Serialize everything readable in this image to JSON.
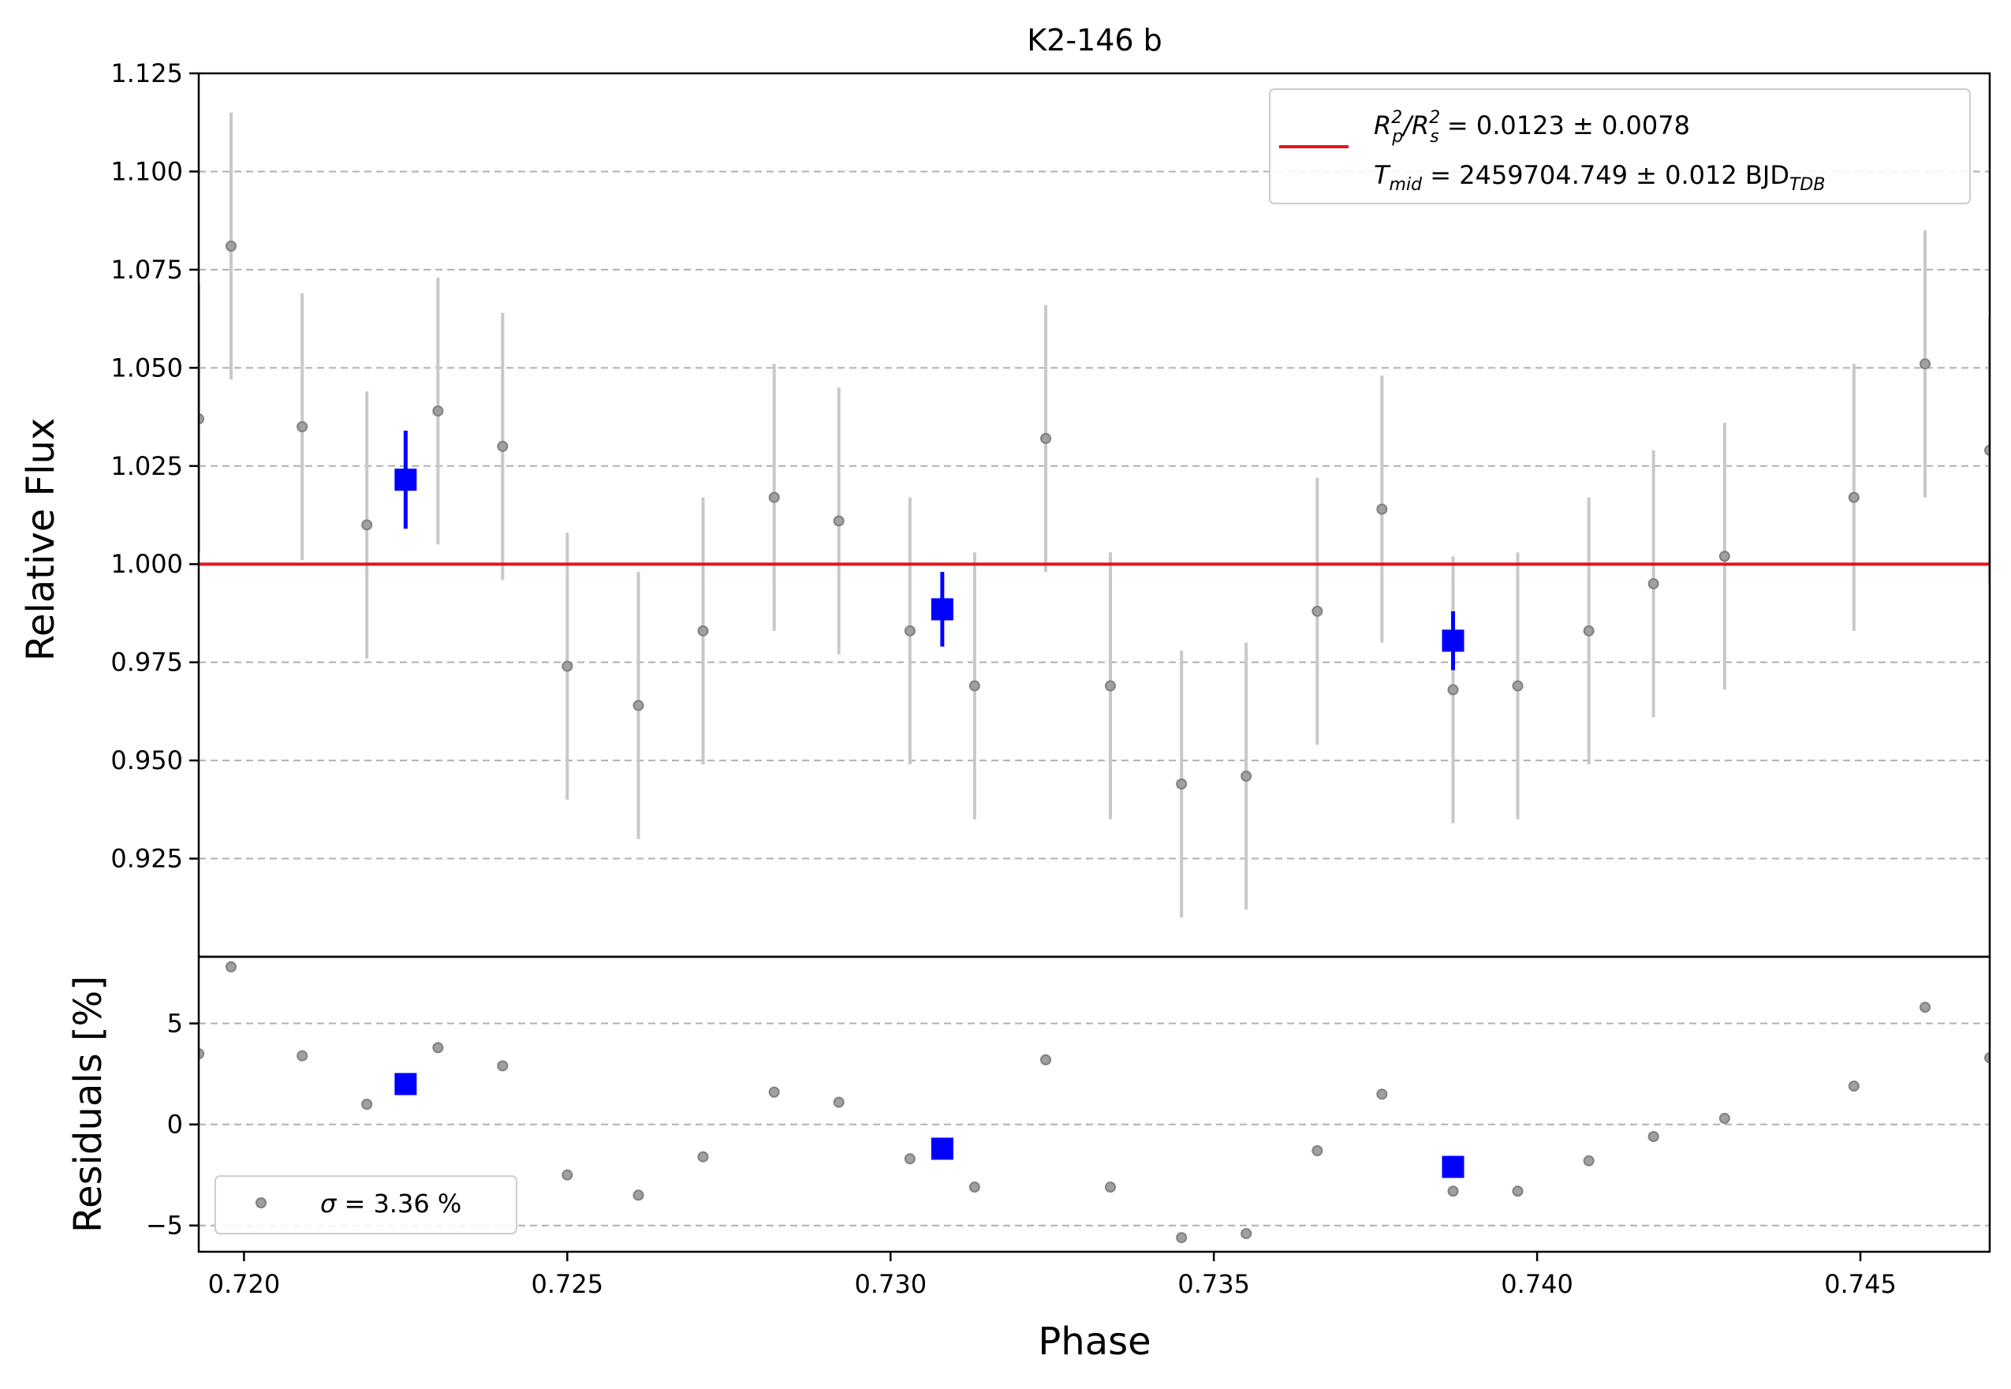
{
  "chart_data": {
    "type": "scatter",
    "title": "K2-146 b",
    "xlabel": "Phase",
    "ylabel_top": "Relative Flux",
    "ylabel_bottom": "Residuals [%]",
    "xlim": [
      0.7193,
      0.747
    ],
    "ylim_top": [
      0.9,
      1.125
    ],
    "ylim_bottom": [
      -6.3,
      8.3
    ],
    "x_ticks": [
      "0.720",
      "0.725",
      "0.730",
      "0.735",
      "0.740",
      "0.745"
    ],
    "x_tick_values": [
      0.72,
      0.725,
      0.73,
      0.735,
      0.74,
      0.745
    ],
    "y_ticks_top": [
      "0.925",
      "0.950",
      "0.975",
      "1.000",
      "1.025",
      "1.050",
      "1.075",
      "1.100",
      "1.125"
    ],
    "y_tick_values_top": [
      0.925,
      0.95,
      0.975,
      1.0,
      1.025,
      1.05,
      1.075,
      1.1,
      1.125
    ],
    "y_ticks_bottom": [
      "−5",
      "0",
      "5"
    ],
    "y_tick_values_bottom": [
      -5,
      0,
      5
    ],
    "grid": "horizontal dashed",
    "colors": {
      "data": "#808080",
      "errorbar": "#c8c8c8",
      "binned": "#0000ff",
      "model": "#e8141c",
      "grid": "#b0b0b0"
    },
    "model_line_value": 1.0,
    "legend_top": {
      "placement": "top-right",
      "line1_prefix": "R",
      "line1_sub_p": "p",
      "line1_sup": "2",
      "line1_mid": "/R",
      "line1_sub_s": "s",
      "line1_value": " = 0.0123 ± 0.0078",
      "line2_T": "T",
      "line2_sub": "mid",
      "line2_value": " = 2459704.749 ± 0.012 BJD",
      "line2_sub2": "TDB"
    },
    "legend_bottom": {
      "placement": "lower-left",
      "sigma": "σ",
      "value": " = 3.36 %"
    },
    "series_data": [
      {
        "x": 0.7193,
        "y": 1.037,
        "err": 0.034,
        "res": 3.5
      },
      {
        "x": 0.7198,
        "y": 1.081,
        "err": 0.034,
        "res": 7.8
      },
      {
        "x": 0.7209,
        "y": 1.035,
        "err": 0.034,
        "res": 3.4
      },
      {
        "x": 0.7219,
        "y": 1.01,
        "err": 0.034,
        "res": 1.0
      },
      {
        "x": 0.723,
        "y": 1.039,
        "err": 0.034,
        "res": 3.8
      },
      {
        "x": 0.724,
        "y": 1.03,
        "err": 0.034,
        "res": 2.9
      },
      {
        "x": 0.725,
        "y": 0.974,
        "err": 0.034,
        "res": -2.5
      },
      {
        "x": 0.7261,
        "y": 0.964,
        "err": 0.034,
        "res": -3.5
      },
      {
        "x": 0.7271,
        "y": 0.983,
        "err": 0.034,
        "res": -1.6
      },
      {
        "x": 0.7282,
        "y": 1.017,
        "err": 0.034,
        "res": 1.6
      },
      {
        "x": 0.7292,
        "y": 1.011,
        "err": 0.034,
        "res": 1.1
      },
      {
        "x": 0.7303,
        "y": 0.983,
        "err": 0.034,
        "res": -1.7
      },
      {
        "x": 0.7313,
        "y": 0.969,
        "err": 0.034,
        "res": -3.1
      },
      {
        "x": 0.7324,
        "y": 1.032,
        "err": 0.034,
        "res": 3.2
      },
      {
        "x": 0.7334,
        "y": 0.969,
        "err": 0.034,
        "res": -3.1
      },
      {
        "x": 0.7345,
        "y": 0.944,
        "err": 0.034,
        "res": -5.6
      },
      {
        "x": 0.7355,
        "y": 0.946,
        "err": 0.034,
        "res": -5.4
      },
      {
        "x": 0.7366,
        "y": 0.988,
        "err": 0.034,
        "res": -1.3
      },
      {
        "x": 0.7376,
        "y": 1.014,
        "err": 0.034,
        "res": 1.5
      },
      {
        "x": 0.7387,
        "y": 0.968,
        "err": 0.034,
        "res": -3.3
      },
      {
        "x": 0.7397,
        "y": 0.969,
        "err": 0.034,
        "res": -3.3
      },
      {
        "x": 0.7408,
        "y": 0.983,
        "err": 0.034,
        "res": -1.8
      },
      {
        "x": 0.7418,
        "y": 0.995,
        "err": 0.034,
        "res": -0.6
      },
      {
        "x": 0.7429,
        "y": 1.002,
        "err": 0.034,
        "res": 0.3
      },
      {
        "x": 0.7449,
        "y": 1.017,
        "err": 0.034,
        "res": 1.9
      },
      {
        "x": 0.746,
        "y": 1.051,
        "err": 0.034,
        "res": 5.8
      },
      {
        "x": 0.747,
        "y": 1.029,
        "err": 0.034,
        "res": 3.3
      }
    ],
    "binned_data": [
      {
        "x": 0.7225,
        "y": 1.0215,
        "err": 0.0125,
        "res": 2.0
      },
      {
        "x": 0.7308,
        "y": 0.9885,
        "err": 0.0095,
        "res": -1.2
      },
      {
        "x": 0.7387,
        "y": 0.9805,
        "err": 0.0075,
        "res": -2.1
      }
    ]
  }
}
